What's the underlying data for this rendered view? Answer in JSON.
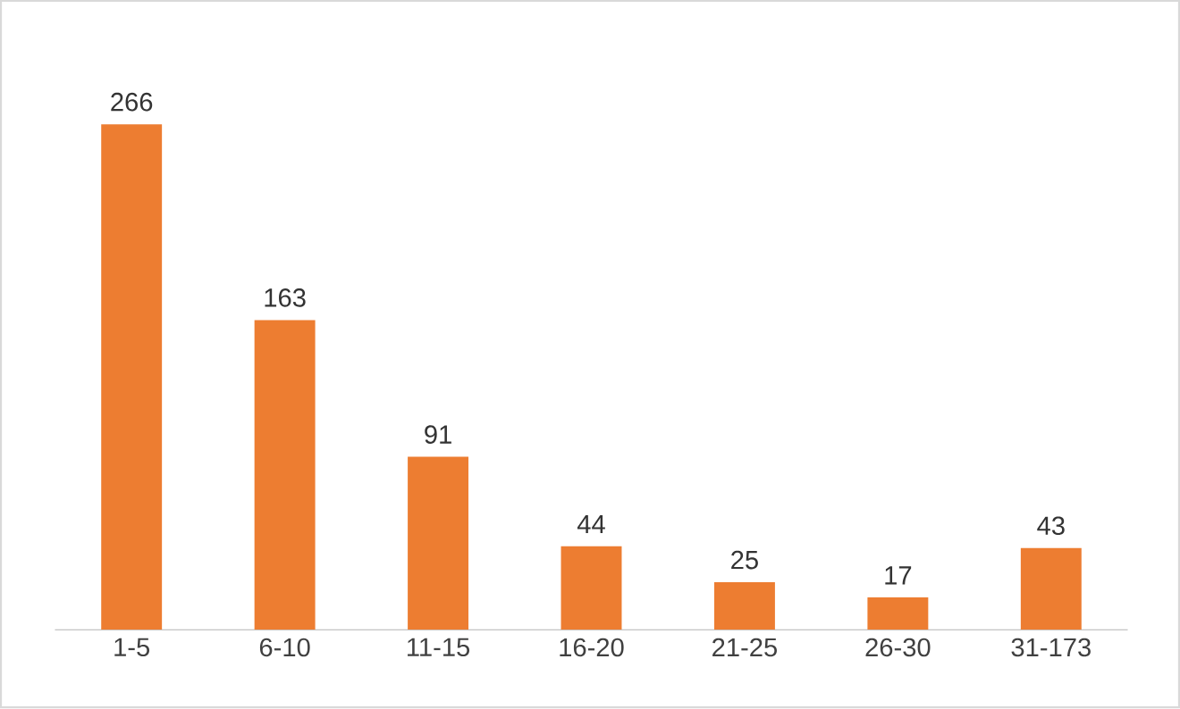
{
  "chart_data": {
    "type": "bar",
    "categories": [
      "1-5",
      "6-10",
      "11-15",
      "16-20",
      "21-25",
      "26-30",
      "31-173"
    ],
    "values": [
      266,
      163,
      91,
      44,
      25,
      17,
      43
    ],
    "color": "#ed7d31",
    "data_labels": true
  }
}
